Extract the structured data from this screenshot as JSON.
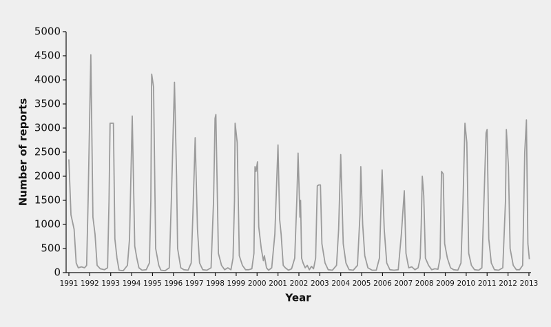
{
  "chart_data": {
    "type": "line",
    "xlabel": "Year",
    "ylabel": "Number of reports",
    "color": "#9b9b9b",
    "grid": false,
    "xlim": [
      1991,
      2013.1
    ],
    "ylim": [
      0,
      5000
    ],
    "xticks": [
      1991,
      1992,
      1993,
      1994,
      1995,
      1996,
      1997,
      1998,
      1999,
      2000,
      2001,
      2002,
      2003,
      2004,
      2005,
      2006,
      2007,
      2008,
      2009,
      2010,
      2011,
      2012,
      2013
    ],
    "yticks": [
      0,
      500,
      1000,
      1500,
      2000,
      2500,
      3000,
      3500,
      4000,
      4500,
      5000
    ],
    "x": [
      1991.0,
      1991.1,
      1991.25,
      1991.35,
      1991.45,
      1991.6,
      1991.75,
      1991.85,
      1991.92,
      1992.05,
      1992.15,
      1992.25,
      1992.35,
      1992.5,
      1992.7,
      1992.85,
      1992.92,
      1992.97,
      1993.13,
      1993.2,
      1993.3,
      1993.4,
      1993.6,
      1993.8,
      1993.9,
      1994.03,
      1994.15,
      1994.25,
      1994.35,
      1994.5,
      1994.7,
      1994.85,
      1994.92,
      1994.96,
      1995.05,
      1995.15,
      1995.3,
      1995.4,
      1995.6,
      1995.8,
      1995.9,
      1996.05,
      1996.15,
      1996.2,
      1996.35,
      1996.5,
      1996.7,
      1996.85,
      1996.93,
      1997.04,
      1997.15,
      1997.25,
      1997.4,
      1997.6,
      1997.8,
      1997.92,
      1997.99,
      1998.03,
      1998.15,
      1998.3,
      1998.45,
      1998.6,
      1998.75,
      1998.85,
      1998.92,
      1998.95,
      1999.05,
      1999.15,
      1999.3,
      1999.45,
      1999.6,
      1999.75,
      1999.85,
      1999.9,
      1999.95,
      2000.02,
      2000.08,
      2000.2,
      2000.3,
      2000.35,
      2000.45,
      2000.55,
      2000.7,
      2000.85,
      2001.0,
      2001.08,
      2001.15,
      2001.25,
      2001.35,
      2001.5,
      2001.65,
      2001.8,
      2001.9,
      2001.96,
      2002.05,
      2002.08,
      2002.13,
      2002.2,
      2002.3,
      2002.4,
      2002.5,
      2002.6,
      2002.7,
      2002.8,
      2002.88,
      2002.95,
      2003.03,
      2003.1,
      2003.25,
      2003.4,
      2003.6,
      2003.8,
      2003.9,
      2004.0,
      2004.12,
      2004.25,
      2004.4,
      2004.6,
      2004.8,
      2004.92,
      2004.96,
      2005.05,
      2005.15,
      2005.3,
      2005.5,
      2005.7,
      2005.85,
      2005.98,
      2006.08,
      2006.2,
      2006.35,
      2006.55,
      2006.75,
      2006.9,
      2007.04,
      2007.12,
      2007.25,
      2007.4,
      2007.55,
      2007.7,
      2007.8,
      2007.85,
      2007.9,
      2007.97,
      2008.05,
      2008.2,
      2008.35,
      2008.5,
      2008.65,
      2008.75,
      2008.82,
      2008.9,
      2008.97,
      2009.1,
      2009.25,
      2009.4,
      2009.6,
      2009.75,
      2009.85,
      2009.94,
      2010.03,
      2010.12,
      2010.25,
      2010.4,
      2010.6,
      2010.75,
      2010.85,
      2010.95,
      2011.0,
      2011.08,
      2011.2,
      2011.35,
      2011.55,
      2011.75,
      2011.88,
      2011.92,
      2012.02,
      2012.1,
      2012.25,
      2012.4,
      2012.55,
      2012.7,
      2012.8,
      2012.88,
      2012.95,
      2013.02
    ],
    "values": [
      2350,
      1200,
      900,
      200,
      100,
      120,
      100,
      150,
      1500,
      4520,
      1150,
      800,
      150,
      80,
      60,
      100,
      1500,
      3100,
      3100,
      700,
      300,
      50,
      40,
      150,
      700,
      3250,
      550,
      300,
      100,
      50,
      60,
      200,
      1500,
      4120,
      3850,
      500,
      150,
      50,
      40,
      100,
      1500,
      3950,
      2000,
      500,
      100,
      60,
      50,
      200,
      1200,
      2800,
      900,
      200,
      60,
      50,
      100,
      1500,
      3200,
      3280,
      400,
      150,
      60,
      100,
      60,
      300,
      1500,
      3100,
      2700,
      350,
      150,
      60,
      60,
      80,
      400,
      2200,
      2100,
      2300,
      950,
      500,
      250,
      350,
      100,
      50,
      100,
      800,
      2650,
      1100,
      800,
      150,
      100,
      50,
      80,
      300,
      1500,
      2480,
      1150,
      1500,
      300,
      200,
      100,
      150,
      60,
      130,
      80,
      300,
      1800,
      1820,
      1820,
      600,
      200,
      60,
      50,
      150,
      900,
      2450,
      600,
      200,
      60,
      50,
      150,
      1200,
      2200,
      1000,
      350,
      100,
      50,
      50,
      300,
      2130,
      900,
      200,
      60,
      50,
      60,
      800,
      1700,
      400,
      100,
      120,
      60,
      100,
      300,
      1000,
      2000,
      1600,
      300,
      150,
      60,
      80,
      70,
      300,
      2100,
      2050,
      600,
      300,
      100,
      60,
      50,
      200,
      1500,
      3100,
      2700,
      400,
      150,
      60,
      50,
      100,
      1500,
      2900,
      2970,
      700,
      200,
      60,
      50,
      100,
      1500,
      2970,
      2200,
      500,
      150,
      60,
      60,
      150,
      2500,
      3170,
      600,
      280
    ]
  }
}
